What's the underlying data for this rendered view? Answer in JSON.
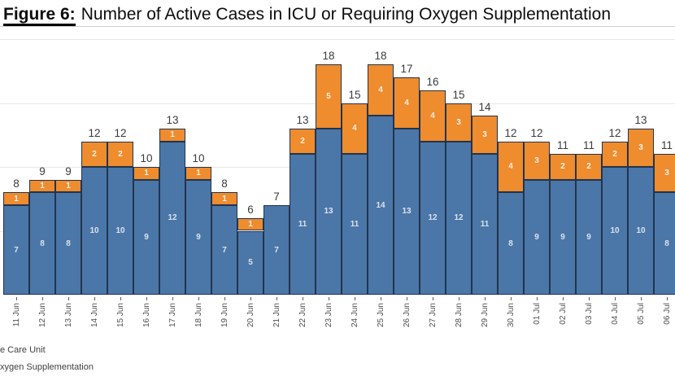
{
  "title": {
    "figure_label": "Figure 6:",
    "text": "Number of Active Cases in ICU or Requiring Oxygen Supplementation"
  },
  "legend": {
    "items": [
      {
        "label": "e Care Unit",
        "color": "#4B76A8"
      },
      {
        "label": "xygen Supplementation",
        "color": "#EE8C2E"
      }
    ]
  },
  "chart_data": {
    "type": "bar",
    "stacked": true,
    "title": "Number of Active Cases in ICU or Requiring Oxygen Supplementation",
    "xlabel": "",
    "ylabel": "",
    "ylim": [
      0,
      20
    ],
    "gridlines": [
      5,
      10,
      15,
      20
    ],
    "grid": true,
    "legend_position": "bottom-left",
    "categories": [
      "11 Jun",
      "12 Jun",
      "13 Jun",
      "14 Jun",
      "15 Jun",
      "16 Jun",
      "17 Jun",
      "18 Jun",
      "19 Jun",
      "20 Jun",
      "21 Jun",
      "22 Jun",
      "23 Jun",
      "24 Jun",
      "25 Jun",
      "26 Jun",
      "27 Jun",
      "28 Jun",
      "29 Jun",
      "30 Jun",
      "01 Jul",
      "02 Jul",
      "03 Jul",
      "04 Jul",
      "05 Jul",
      "06 Jul"
    ],
    "series": [
      {
        "name": "e Care Unit",
        "color": "#4B76A8",
        "values": [
          7,
          8,
          8,
          10,
          10,
          9,
          12,
          9,
          7,
          5,
          7,
          11,
          13,
          11,
          14,
          13,
          12,
          12,
          11,
          8,
          9,
          9,
          9,
          10,
          10,
          8
        ]
      },
      {
        "name": "xygen Supplementation",
        "color": "#EE8C2E",
        "values": [
          1,
          1,
          1,
          2,
          2,
          1,
          1,
          1,
          1,
          1,
          0,
          2,
          5,
          4,
          4,
          4,
          4,
          3,
          3,
          4,
          3,
          2,
          2,
          2,
          3,
          3
        ]
      }
    ],
    "totals": [
      8,
      9,
      9,
      12,
      12,
      10,
      13,
      10,
      8,
      6,
      7,
      13,
      18,
      15,
      18,
      17,
      16,
      15,
      14,
      12,
      12,
      11,
      11,
      12,
      13,
      11
    ]
  },
  "colors": {
    "icu_blue": "#4B76A8",
    "oxygen_orange": "#EE8C2E",
    "bar_border": "#22344C",
    "gridline": "#E7E7E7",
    "total_label": "#3A3A3A"
  }
}
